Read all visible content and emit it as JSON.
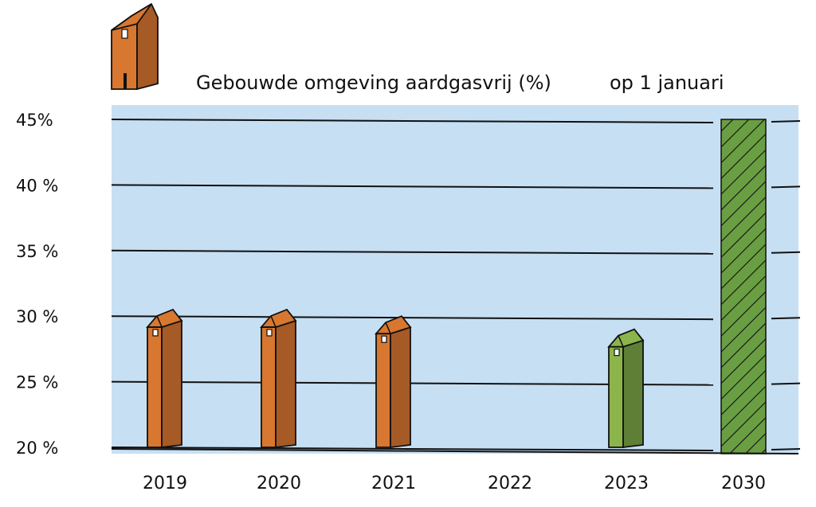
{
  "chart_data": {
    "type": "bar",
    "title": "Gebouwde omgeving aardgasvrij (%)",
    "subtitle": "op 1 januari",
    "categories": [
      "2019",
      "2020",
      "2021",
      "2022",
      "2023",
      "2030"
    ],
    "values": [
      30.5,
      30.5,
      30,
      null,
      29,
      45
    ],
    "kinds": [
      "actual",
      "actual",
      "actual",
      "missing",
      "actual",
      "target"
    ],
    "ylim": [
      20,
      45
    ],
    "yticks": [
      20,
      25,
      30,
      35,
      40,
      45
    ],
    "ytick_labels": [
      "20 %",
      "25 %",
      "30 %",
      "35 %",
      "40 %",
      "45%"
    ],
    "grid": true,
    "colors": {
      "background": "#c6dff3",
      "bar_actual": "#d8772f",
      "bar_actual_shade": "#a65a26",
      "bar_latest": "#8bb54a",
      "bar_latest_shade": "#5e7f35",
      "bar_target": "#6a9e43",
      "outline": "#111111"
    }
  },
  "icons": {
    "logo": "house-icon"
  }
}
